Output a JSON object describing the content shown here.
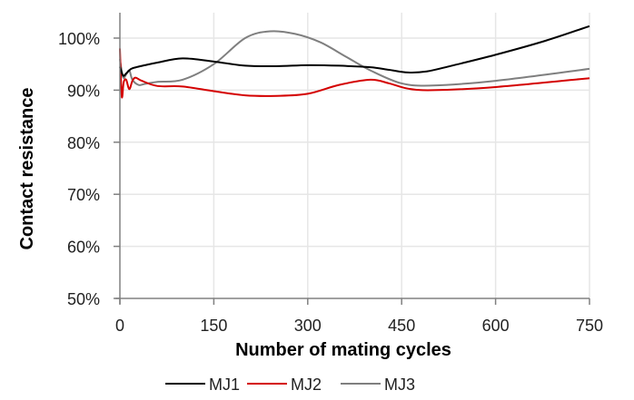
{
  "chart_data": {
    "type": "line",
    "title": "",
    "xlabel": "Number of mating cycles",
    "ylabel": "Contact resistance",
    "xlim": [
      0,
      750
    ],
    "ylim": [
      50,
      100
    ],
    "xticks": [
      0,
      150,
      300,
      450,
      600,
      750
    ],
    "xtick_labels": [
      "0",
      "150",
      "300",
      "450",
      "600",
      "750"
    ],
    "yticks": [
      50,
      60,
      70,
      80,
      90,
      100
    ],
    "ytick_labels": [
      "50%",
      "60%",
      "70%",
      "80%",
      "90%",
      "100%"
    ],
    "grid": true,
    "legend": "bottom",
    "series": [
      {
        "name": "MJ1",
        "color": "#000000",
        "x": [
          0,
          5,
          10,
          15,
          20,
          40,
          60,
          100,
          150,
          200,
          250,
          300,
          350,
          400,
          430,
          460,
          490,
          530,
          600,
          680,
          750
        ],
        "y": [
          94.5,
          92.8,
          93.2,
          93.8,
          94.2,
          94.8,
          95.3,
          96.1,
          95.5,
          94.7,
          94.6,
          94.8,
          94.7,
          94.4,
          93.9,
          93.4,
          93.6,
          94.7,
          96.8,
          99.5,
          102.3
        ]
      },
      {
        "name": "MJ2",
        "color": "#d40000",
        "x": [
          0,
          3,
          6,
          10,
          15,
          20,
          25,
          35,
          60,
          100,
          150,
          200,
          250,
          300,
          350,
          400,
          430,
          460,
          500,
          600,
          750
        ],
        "y": [
          98,
          88.8,
          91.5,
          92.0,
          90.2,
          91.8,
          92.4,
          91.8,
          90.8,
          90.7,
          89.8,
          89.0,
          88.9,
          89.3,
          91.0,
          92.0,
          91.3,
          90.3,
          90.0,
          90.6,
          92.3
        ]
      },
      {
        "name": "MJ3",
        "color": "#7f7f7f",
        "x": [
          0,
          5,
          10,
          15,
          20,
          30,
          40,
          60,
          100,
          150,
          200,
          240,
          280,
          320,
          360,
          400,
          450,
          500,
          600,
          750
        ],
        "y": [
          96,
          92.5,
          93.0,
          93.8,
          92.0,
          91.0,
          91.2,
          91.6,
          92.0,
          95.0,
          100.0,
          101.3,
          100.8,
          99.2,
          96.5,
          93.8,
          91.3,
          90.9,
          91.8,
          94.1
        ]
      }
    ]
  }
}
